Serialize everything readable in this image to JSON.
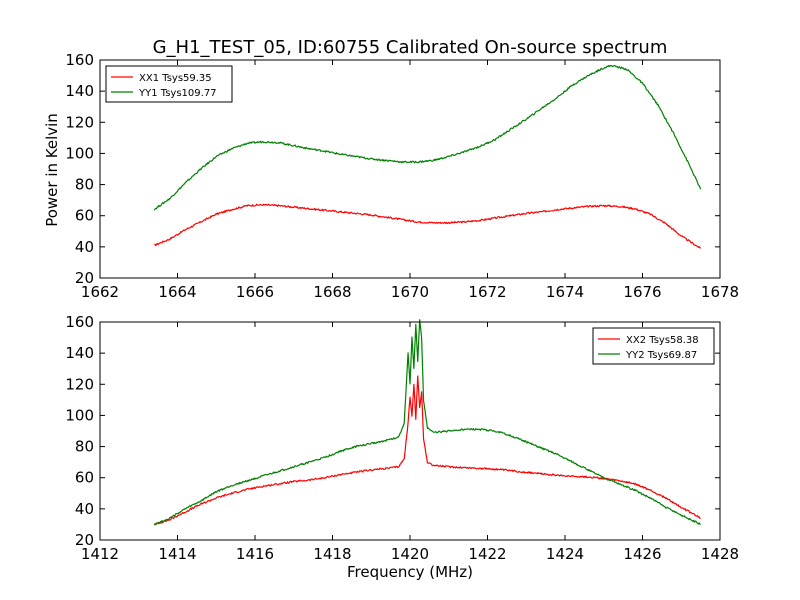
{
  "figure": {
    "title": "G_H1_TEST_05, ID:60755 Calibrated On-source spectrum",
    "ylabel": "Power in Kelvin",
    "xlabel": "Frequency (MHz)"
  },
  "chart_data": [
    {
      "type": "line",
      "xlim": [
        1662,
        1678
      ],
      "ylim": [
        20,
        160
      ],
      "xticks": [
        "1662",
        "1664",
        "1666",
        "1668",
        "1670",
        "1672",
        "1674",
        "1676",
        "1678"
      ],
      "yticks": [
        "20",
        "40",
        "60",
        "80",
        "100",
        "120",
        "140",
        "160"
      ],
      "legend_position": "top-left",
      "grid": false,
      "series": [
        {
          "name": "XX1 Tsys59.35",
          "color": "#ff0000",
          "x": [
            1663.4,
            1663.8,
            1664.2,
            1664.6,
            1665.0,
            1665.4,
            1665.8,
            1666.2,
            1666.6,
            1667.0,
            1667.4,
            1667.8,
            1668.2,
            1668.6,
            1669.0,
            1669.4,
            1669.8,
            1670.2,
            1670.6,
            1671.0,
            1671.4,
            1671.8,
            1672.2,
            1672.6,
            1673.0,
            1673.4,
            1673.8,
            1674.2,
            1674.6,
            1675.0,
            1675.4,
            1675.8,
            1676.2,
            1676.6,
            1677.0,
            1677.5
          ],
          "y": [
            41,
            45,
            51,
            56,
            61,
            64,
            66.5,
            67,
            66.5,
            65.5,
            64.5,
            63.5,
            62.5,
            61.5,
            60.5,
            59,
            57.5,
            56,
            55.5,
            55.5,
            56,
            57,
            58.5,
            60,
            61.5,
            62.5,
            64,
            65,
            66,
            66.5,
            66,
            64.5,
            61,
            55,
            47,
            39
          ]
        },
        {
          "name": "YY1 Tsys109.77",
          "color": "#008000",
          "x": [
            1663.4,
            1663.8,
            1664.2,
            1664.6,
            1665.0,
            1665.4,
            1665.8,
            1666.2,
            1666.6,
            1667.0,
            1667.4,
            1667.8,
            1668.2,
            1668.6,
            1669.0,
            1669.4,
            1669.8,
            1670.2,
            1670.6,
            1671.0,
            1671.4,
            1671.8,
            1672.2,
            1672.6,
            1673.0,
            1673.4,
            1673.8,
            1674.2,
            1674.6,
            1675.0,
            1675.2,
            1675.6,
            1676.0,
            1676.4,
            1676.8,
            1677.2,
            1677.5
          ],
          "y": [
            64,
            71,
            81,
            90,
            98,
            103,
            106.5,
            107.5,
            107,
            105,
            103,
            101.5,
            99.5,
            98,
            96.5,
            95.5,
            94.5,
            94.5,
            95.5,
            98,
            101,
            104.5,
            109,
            115.5,
            122,
            129,
            136,
            144,
            150,
            155,
            156.5,
            154,
            145,
            131,
            113,
            93,
            77
          ]
        }
      ]
    },
    {
      "type": "line",
      "xlim": [
        1412,
        1428
      ],
      "ylim": [
        20,
        160
      ],
      "xlabel": "Frequency (MHz)",
      "xticks": [
        "1412",
        "1414",
        "1416",
        "1418",
        "1420",
        "1422",
        "1424",
        "1426",
        "1428"
      ],
      "yticks": [
        "20",
        "40",
        "60",
        "80",
        "100",
        "120",
        "140",
        "160"
      ],
      "legend_position": "top-right",
      "grid": false,
      "series": [
        {
          "name": "XX2 Tsys58.38",
          "color": "#ff0000",
          "x": [
            1413.4,
            1413.8,
            1414.2,
            1414.6,
            1415.0,
            1415.4,
            1415.8,
            1416.2,
            1416.6,
            1417.0,
            1417.4,
            1417.8,
            1418.2,
            1418.6,
            1419.0,
            1419.4,
            1419.7,
            1419.85,
            1419.95,
            1420.0,
            1420.05,
            1420.1,
            1420.15,
            1420.2,
            1420.25,
            1420.3,
            1420.35,
            1420.45,
            1420.6,
            1421.0,
            1421.4,
            1421.8,
            1422.2,
            1422.6,
            1423.0,
            1423.4,
            1423.8,
            1424.2,
            1424.6,
            1425.0,
            1425.4,
            1425.8,
            1426.2,
            1426.6,
            1427.0,
            1427.5
          ],
          "y": [
            30,
            33,
            38,
            43,
            47,
            50,
            52.5,
            54.5,
            56,
            57.5,
            58.5,
            60,
            62,
            63.5,
            65,
            66,
            67,
            72,
            95,
            112,
            100,
            120,
            98,
            125,
            105,
            115,
            85,
            70,
            68,
            67,
            66.5,
            66,
            65.5,
            64.5,
            63.5,
            62.5,
            61.5,
            61,
            60.5,
            59.5,
            58,
            56,
            52,
            47,
            41,
            34
          ]
        },
        {
          "name": "YY2 Tsys69.87",
          "color": "#008000",
          "x": [
            1413.4,
            1413.8,
            1414.2,
            1414.6,
            1415.0,
            1415.4,
            1415.8,
            1416.2,
            1416.6,
            1417.0,
            1417.4,
            1417.8,
            1418.2,
            1418.6,
            1419.0,
            1419.4,
            1419.7,
            1419.85,
            1419.95,
            1420.0,
            1420.05,
            1420.1,
            1420.15,
            1420.2,
            1420.25,
            1420.3,
            1420.35,
            1420.45,
            1420.6,
            1421.0,
            1421.4,
            1421.8,
            1422.2,
            1422.6,
            1423.0,
            1423.4,
            1423.8,
            1424.2,
            1424.6,
            1425.0,
            1425.4,
            1425.8,
            1426.2,
            1426.6,
            1427.0,
            1427.5
          ],
          "y": [
            30,
            34,
            40,
            45,
            51,
            55,
            58,
            61,
            64,
            67,
            70,
            73,
            77,
            80,
            82,
            84,
            86,
            95,
            140,
            120,
            150,
            130,
            158,
            135,
            162,
            150,
            110,
            92,
            89,
            90,
            91,
            91,
            90,
            87,
            83,
            79,
            75,
            70,
            65,
            60,
            56,
            52,
            47,
            41,
            36,
            30
          ]
        }
      ]
    }
  ]
}
